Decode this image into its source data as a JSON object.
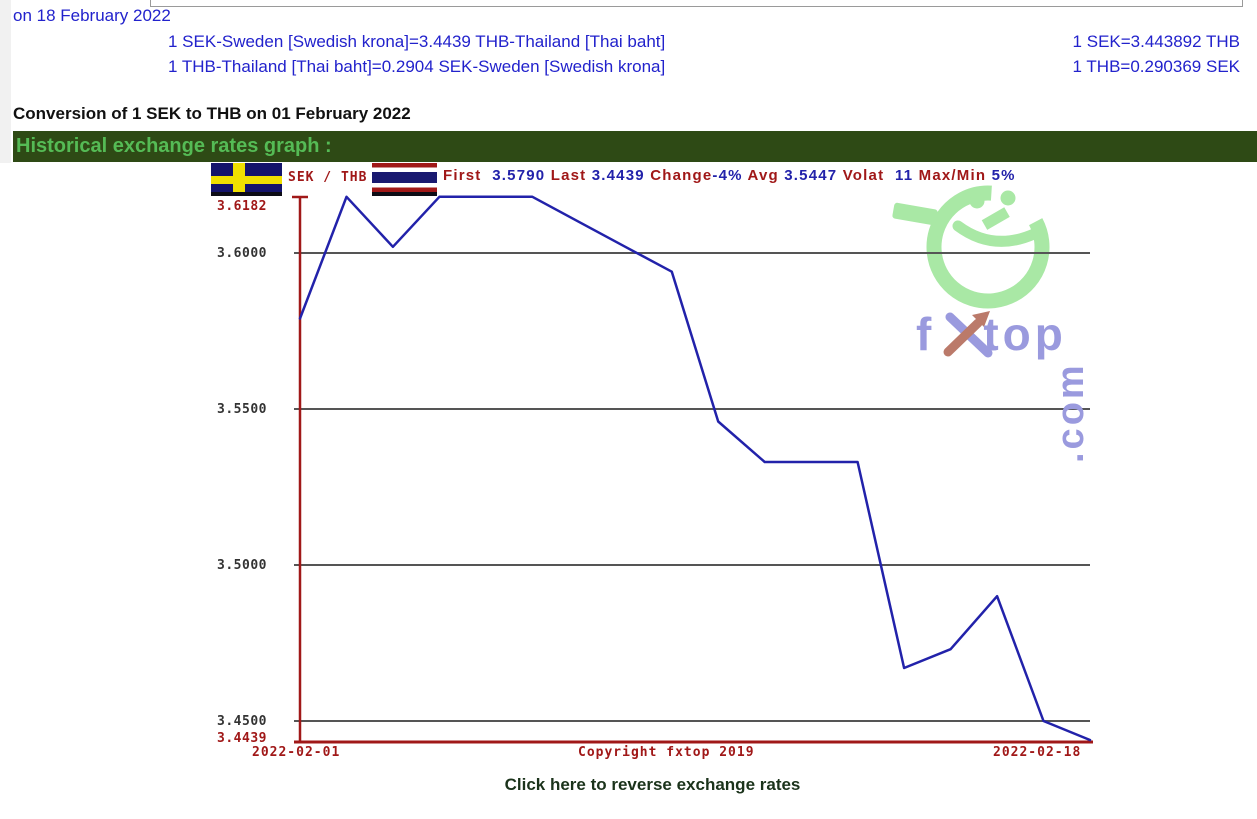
{
  "colors": {
    "link_blue": "#2222cc",
    "heading_black": "#111111",
    "bar_bg": "#2e4a15",
    "bar_text": "#55bb55",
    "dark_red": "#a01818",
    "navy": "#2222aa",
    "grid_gray": "#555555",
    "line_blue": "#2222aa",
    "watermark_green": "#a9e8a5",
    "watermark_purple": "#9a9ade",
    "arrow_brown": "#bb7a6a",
    "reverse_link_green": "#1b331b"
  },
  "header": {
    "date_line": "on 18 February 2022",
    "rate_lines": [
      {
        "left": "1 SEK-Sweden [Swedish krona]=3.4439 THB-Thailand [Thai baht]",
        "right": "1 SEK=3.443892 THB"
      },
      {
        "left": "1 THB-Thailand [Thai baht]=0.2904 SEK-Sweden [Swedish krona]",
        "right": "1 THB=0.290369 SEK"
      }
    ],
    "conversion_heading": "Conversion of 1 SEK to THB on 01 February 2022",
    "section_title": "Historical exchange rates graph :"
  },
  "chart": {
    "pair_label": "SEK / THB",
    "flag_left": "sweden",
    "flag_right": "thailand",
    "stats_segments": [
      {
        "t": "First",
        "c": "l"
      },
      {
        "t": "  3.5790",
        "c": "v"
      },
      {
        "t": " Last ",
        "c": "l"
      },
      {
        "t": "3.4439",
        "c": "v"
      },
      {
        "t": " Change",
        "c": "l"
      },
      {
        "t": "-4%",
        "c": "v"
      },
      {
        "t": " Avg ",
        "c": "l"
      },
      {
        "t": "3.5447",
        "c": "v"
      },
      {
        "t": " Volat  ",
        "c": "l"
      },
      {
        "t": "11",
        "c": "v"
      },
      {
        "t": " Max/Min ",
        "c": "l"
      },
      {
        "t": "5%",
        "c": "v"
      }
    ],
    "y_labels": [
      {
        "text": "3.6182",
        "value": 3.6182,
        "red": true,
        "dy": 10
      },
      {
        "text": "3.6000",
        "value": 3.6
      },
      {
        "text": "3.5500",
        "value": 3.55
      },
      {
        "text": "3.5000",
        "value": 3.5
      },
      {
        "text": "3.4500",
        "value": 3.45
      },
      {
        "text": "3.4439",
        "value": 3.4439,
        "red": true,
        "dy": -2
      }
    ],
    "x_labels": {
      "start": "2022-02-01",
      "copyright": "Copyright fxtop 2019",
      "end": "2022-02-18"
    },
    "watermark": {
      "part1": "f",
      "part2": "top",
      "suffix": ".com"
    }
  },
  "chart_data": {
    "type": "line",
    "title": "SEK / THB historical exchange rates graph",
    "x": [
      "2022-02-01",
      "2022-02-02",
      "2022-02-03",
      "2022-02-04",
      "2022-02-05",
      "2022-02-06",
      "2022-02-07",
      "2022-02-08",
      "2022-02-09",
      "2022-02-10",
      "2022-02-11",
      "2022-02-12",
      "2022-02-13",
      "2022-02-14",
      "2022-02-15",
      "2022-02-16",
      "2022-02-17",
      "2022-02-18"
    ],
    "values": [
      3.579,
      3.618,
      3.602,
      3.618,
      3.618,
      3.618,
      3.61,
      3.602,
      3.594,
      3.546,
      3.533,
      3.533,
      3.533,
      3.467,
      3.473,
      3.49,
      3.45,
      3.4439
    ],
    "ylim": [
      3.4439,
      3.6182
    ],
    "gridlines": [
      3.6,
      3.55,
      3.5,
      3.45
    ],
    "y_tick_labels": [
      "3.6182",
      "3.6000",
      "3.5500",
      "3.5000",
      "3.4500",
      "3.4439"
    ],
    "stats": {
      "first": 3.579,
      "last": 3.4439,
      "change_pct": -4,
      "avg": 3.5447,
      "volat": 11,
      "maxmin_pct": 5
    },
    "line_color": "#2222aa",
    "grid": "on",
    "legend": "none",
    "xlabel": "",
    "ylabel": ""
  },
  "footer": {
    "reverse_link": "Click here to reverse exchange rates"
  }
}
